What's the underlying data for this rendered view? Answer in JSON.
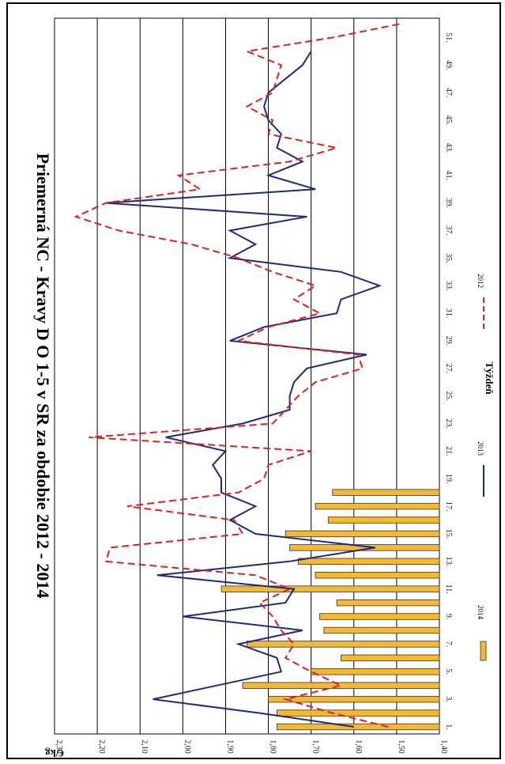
{
  "chart_data": {
    "type": "bar+line",
    "title": "Priemerná NC  -  Kravy D O 1-5 v SR za obdobie 2012 - 2014",
    "xlabel": "Týždeň",
    "ylabel": "€/kg",
    "ylim": [
      1.4,
      2.3
    ],
    "y_ticks": [
      "1,40",
      "1,50",
      "1,60",
      "1,70",
      "1,80",
      "1,90",
      "2,00",
      "2,10",
      "2,20",
      "2,30"
    ],
    "x_tick_labels": [
      "1.",
      "3.",
      "5.",
      "7.",
      "9.",
      "11.",
      "13.",
      "15.",
      "17.",
      "19.",
      "21.",
      "23.",
      "25.",
      "27.",
      "29.",
      "31.",
      "33.",
      "35.",
      "37.",
      "39.",
      "41.",
      "43.",
      "45.",
      "47.",
      "49.",
      "51."
    ],
    "x_range": [
      1,
      52
    ],
    "legend_position": "bottom",
    "orientation": "rotated-90-clockwise",
    "grid": true,
    "series": [
      {
        "name": "2014",
        "kind": "bar",
        "color": "#F5B82E",
        "x": [
          1,
          2,
          3,
          4,
          5,
          6,
          7,
          8,
          9,
          10,
          11,
          12,
          13,
          14,
          15,
          16,
          17,
          18
        ],
        "values": [
          1.78,
          1.78,
          1.8,
          1.86,
          1.7,
          1.63,
          1.85,
          1.67,
          1.68,
          1.64,
          1.91,
          1.69,
          1.73,
          1.75,
          1.76,
          1.66,
          1.69,
          1.65
        ]
      },
      {
        "name": "2013",
        "kind": "line",
        "color": "#1F2A7A",
        "x": [
          1,
          2,
          3,
          4,
          5,
          6,
          7,
          8,
          9,
          10,
          11,
          12,
          13,
          14,
          15,
          16,
          17,
          18,
          19,
          20,
          21,
          22,
          23,
          24,
          25,
          26,
          27,
          28,
          29,
          30,
          31,
          32,
          33,
          34,
          35,
          36,
          37,
          38,
          39,
          40,
          41,
          42,
          43,
          44,
          45,
          46,
          47,
          48,
          49,
          50
        ],
        "values": [
          1.6,
          1.82,
          2.07,
          1.92,
          1.77,
          1.78,
          1.87,
          1.72,
          2.0,
          1.76,
          1.74,
          2.06,
          1.75,
          1.55,
          1.83,
          1.89,
          1.83,
          1.91,
          1.91,
          1.93,
          1.9,
          2.04,
          1.86,
          1.75,
          1.75,
          1.74,
          1.71,
          1.57,
          1.89,
          1.81,
          1.64,
          1.63,
          1.54,
          1.63,
          1.89,
          1.83,
          1.89,
          1.71,
          2.18,
          1.69,
          1.8,
          1.72,
          1.78,
          1.77,
          1.8,
          1.81,
          1.8,
          1.76,
          1.72,
          1.7
        ]
      },
      {
        "name": "2012",
        "kind": "line",
        "dashed": true,
        "color": "#E02020",
        "x": [
          1,
          2,
          3,
          4,
          5,
          6,
          7,
          8,
          9,
          10,
          11,
          12,
          13,
          14,
          15,
          16,
          17,
          18,
          19,
          20,
          21,
          22,
          23,
          24,
          25,
          26,
          27,
          28,
          29,
          30,
          31,
          32,
          33,
          34,
          35,
          36,
          37,
          38,
          39,
          40,
          41,
          42,
          43,
          44,
          45,
          46,
          47,
          48,
          49,
          50,
          51,
          52
        ],
        "values": [
          1.52,
          1.65,
          1.76,
          1.63,
          1.7,
          1.76,
          1.74,
          1.77,
          1.79,
          1.82,
          1.75,
          1.83,
          2.18,
          2.17,
          1.86,
          1.88,
          2.13,
          1.87,
          1.81,
          1.8,
          1.7,
          2.22,
          1.79,
          1.76,
          1.73,
          1.69,
          1.58,
          1.59,
          1.87,
          1.8,
          1.68,
          1.74,
          1.69,
          1.79,
          1.87,
          1.98,
          2.15,
          2.25,
          2.18,
          1.96,
          2.01,
          1.75,
          1.64,
          1.8,
          1.79,
          1.85,
          1.79,
          1.78,
          1.77,
          1.85,
          1.65,
          1.49
        ]
      }
    ]
  }
}
